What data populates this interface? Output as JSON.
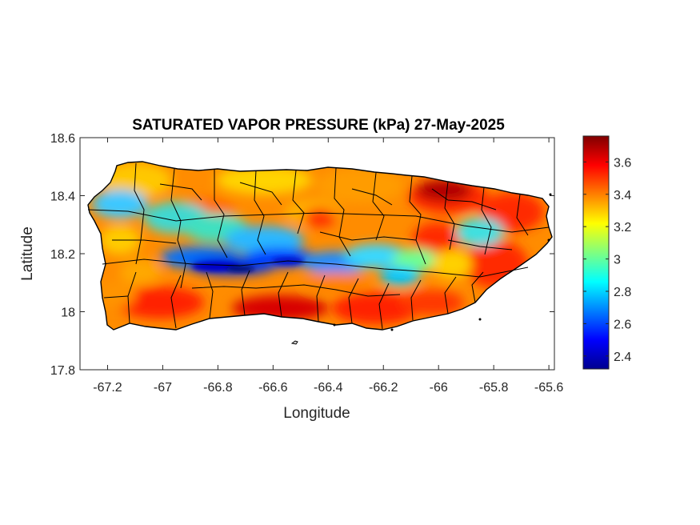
{
  "title": "SATURATED VAPOR PRESSURE (kPa) 27-May-2025",
  "xlabel": "Longitude",
  "ylabel": "Latitude",
  "xlim": [
    -67.3,
    -65.58
  ],
  "ylim": [
    17.8,
    18.6
  ],
  "xticks": [
    "-67.2",
    "-67",
    "-66.8",
    "-66.6",
    "-66.4",
    "-66.2",
    "-66",
    "-65.8",
    "-65.6"
  ],
  "yticks": [
    "18.6",
    "18.4",
    "18.2",
    "18",
    "17.8"
  ],
  "colorbar": {
    "colormap": "jet",
    "min": 2.32,
    "max": 3.76,
    "ticks": [
      "3.6",
      "3.4",
      "3.2",
      "3",
      "2.8",
      "2.6",
      "2.4"
    ]
  },
  "map": {
    "region": "Puerto Rico",
    "content": "municipality boundaries over a saturated vapor pressure field",
    "low_band": "central mountain range (blue, ~2.4-2.8 kPa)",
    "high_areas": "south coast and northeast (red, ~3.5-3.7 kPa)"
  },
  "colors": {
    "boundary": "#000000",
    "axes": "#262626"
  }
}
